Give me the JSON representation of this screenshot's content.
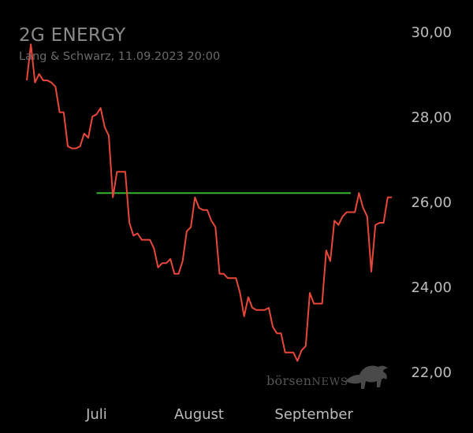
{
  "header": {
    "title": "2G ENERGY",
    "subtitle": "Lang & Schwarz, 11.09.2023 20:00"
  },
  "watermark": {
    "text_a": "börsen",
    "text_b": "NEWS"
  },
  "colors": {
    "line": "#e8473a",
    "reference": "#35b233",
    "text": "#bdbdbd",
    "background": "#000000"
  },
  "chart_data": {
    "type": "line",
    "title": "2G ENERGY",
    "ylim": [
      22,
      30
    ],
    "y_ticks": [
      "30,00",
      "28,00",
      "26,00",
      "24,00",
      "22,00"
    ],
    "y_tick_values": [
      30,
      28,
      26,
      24,
      22
    ],
    "x_ticks": [
      "Juli",
      "August",
      "September"
    ],
    "x_tick_values": [
      17,
      42,
      70
    ],
    "reference_line": {
      "value": 26.2,
      "x_start": 17,
      "x_end": 79
    },
    "series": [
      {
        "values": [
          28.85,
          29.7,
          28.8,
          29.0,
          28.85,
          28.85,
          28.8,
          28.7,
          28.1,
          28.1,
          27.3,
          27.25,
          27.25,
          27.3,
          27.6,
          27.5,
          28.0,
          28.05,
          28.2,
          27.75,
          27.55,
          26.1,
          26.7,
          26.7,
          26.7,
          25.5,
          25.2,
          25.25,
          25.1,
          25.1,
          25.1,
          24.9,
          24.45,
          24.55,
          24.55,
          24.65,
          24.3,
          24.3,
          24.6,
          25.3,
          25.4,
          26.1,
          25.85,
          25.8,
          25.8,
          25.55,
          25.4,
          24.3,
          24.3,
          24.2,
          24.2,
          24.2,
          23.85,
          23.3,
          23.75,
          23.5,
          23.45,
          23.45,
          23.45,
          23.5,
          23.05,
          22.9,
          22.9,
          22.45,
          22.45,
          22.45,
          22.25,
          22.5,
          22.6,
          23.85,
          23.6,
          23.6,
          23.6,
          24.85,
          24.6,
          25.55,
          25.45,
          25.65,
          25.75,
          25.75,
          25.75,
          26.2,
          25.85,
          25.65,
          24.35,
          25.45,
          25.5,
          25.5,
          26.1,
          26.1
        ]
      }
    ]
  }
}
